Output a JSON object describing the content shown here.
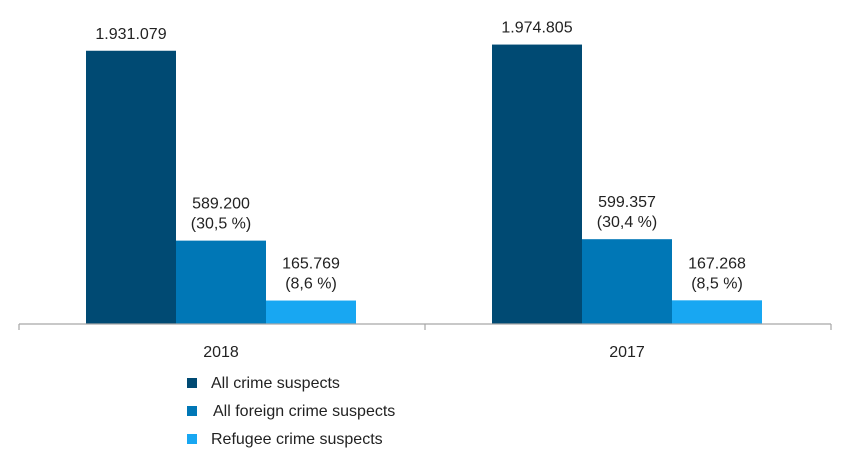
{
  "chart_data": {
    "type": "bar",
    "categories": [
      "2018",
      "2017"
    ],
    "series": [
      {
        "name": "All crime suspects",
        "color": "#004a73",
        "values": [
          1931079,
          1974805
        ],
        "labels": [
          [
            "1.931.079"
          ],
          [
            "1.974.805"
          ]
        ]
      },
      {
        "name": "All foreign crime suspects",
        "color": "#0077b6",
        "values": [
          589200,
          599357
        ],
        "labels": [
          [
            "589.200",
            "(30,5 %)"
          ],
          [
            "599.357",
            "(30,4 %)"
          ]
        ]
      },
      {
        "name": "Refugee crime suspects",
        "color": "#18a7f2",
        "values": [
          165769,
          167268
        ],
        "labels": [
          [
            "165.769",
            "(8,6 %)"
          ],
          [
            "167.268",
            "(8,5 %)"
          ]
        ]
      }
    ],
    "ylim": [
      0,
      2000000
    ],
    "grid": false,
    "legend_position": "bottom"
  }
}
